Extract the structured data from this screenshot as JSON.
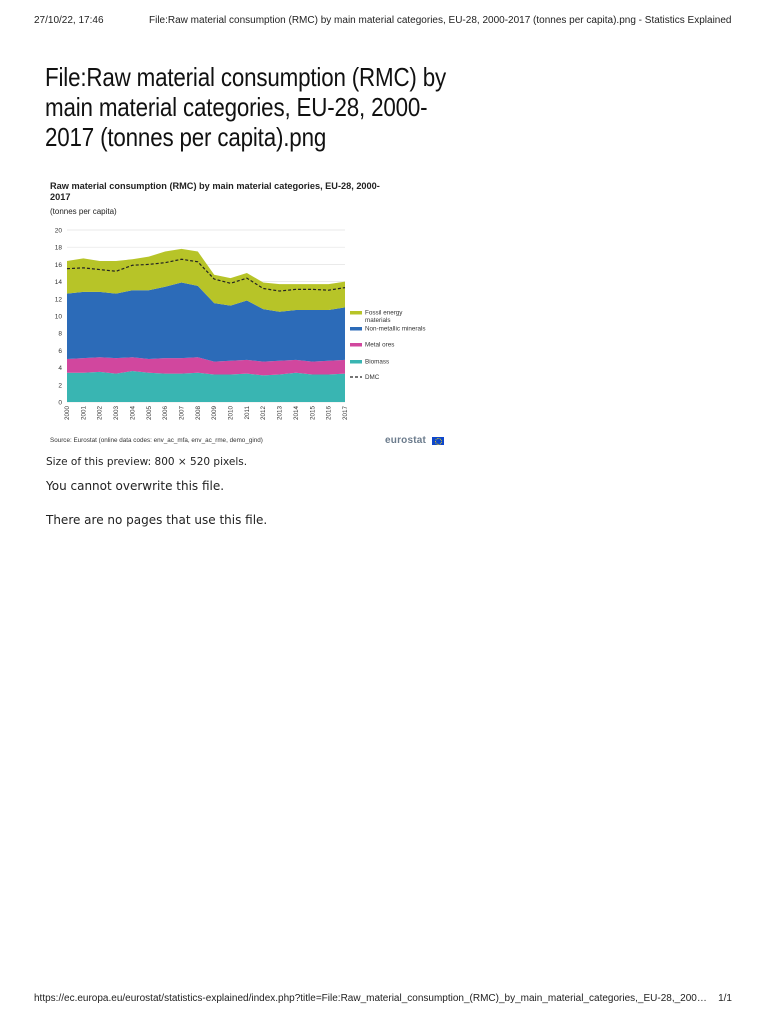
{
  "print_header": {
    "datetime": "27/10/22, 17:46",
    "page_title": "File:Raw material consumption (RMC) by main material categories, EU-28, 2000-2017 (tonnes per capita).png - Statistics Explained"
  },
  "page": {
    "title": "File:Raw material consumption (RMC) by main material categories, EU-28, 2000-2017 (tonnes per capita).png",
    "preview_size": "Size of this preview: 800 × 520 pixels.",
    "no_overwrite": "You cannot overwrite this file.",
    "no_pages": "There are no pages that use this file."
  },
  "figure": {
    "source": "Source: Eurostat (online data codes: env_ac_mfa, env_ac_rme, demo_gind)",
    "brand": "eurostat"
  },
  "print_footer": {
    "url": "https://ec.europa.eu/eurostat/statistics-explained/index.php?title=File:Raw_material_consumption_(RMC)_by_main_material_categories,_EU-28,_200…",
    "page_count": "1/1"
  },
  "chart_data": {
    "type": "area",
    "title": "Raw material consumption (RMC) by main material categories, EU-28, 2000-2017",
    "subtitle": "(tonnes per capita)",
    "x": [
      "2000",
      "2001",
      "2002",
      "2003",
      "2004",
      "2005",
      "2006",
      "2007",
      "2008",
      "2009",
      "2010",
      "2011",
      "2012",
      "2013",
      "2014",
      "2015",
      "2016",
      "2017"
    ],
    "ylim": [
      0,
      20
    ],
    "yticks": [
      0,
      2,
      4,
      6,
      8,
      10,
      12,
      14,
      16,
      18,
      20
    ],
    "grid": true,
    "legend_position": "right",
    "stacked": true,
    "series": [
      {
        "name": "Biomass",
        "color": "#39b5b2",
        "values": [
          3.4,
          3.4,
          3.5,
          3.3,
          3.6,
          3.4,
          3.3,
          3.3,
          3.4,
          3.2,
          3.2,
          3.3,
          3.1,
          3.2,
          3.4,
          3.2,
          3.2,
          3.3
        ]
      },
      {
        "name": "Metal ores",
        "color": "#d1479e",
        "values": [
          1.6,
          1.7,
          1.7,
          1.8,
          1.6,
          1.6,
          1.8,
          1.8,
          1.8,
          1.5,
          1.6,
          1.6,
          1.6,
          1.6,
          1.5,
          1.5,
          1.6,
          1.6
        ]
      },
      {
        "name": "Non-metallic minerals",
        "color": "#2c6bb8",
        "values": [
          7.6,
          7.7,
          7.6,
          7.5,
          7.8,
          8.0,
          8.3,
          8.8,
          8.3,
          6.8,
          6.4,
          6.9,
          6.1,
          5.7,
          5.8,
          6.0,
          5.9,
          6.1
        ]
      },
      {
        "name": "Fossil energy materials",
        "color": "#b7c428",
        "values": [
          3.8,
          3.9,
          3.6,
          3.8,
          3.6,
          3.9,
          4.1,
          3.9,
          4.0,
          3.3,
          3.2,
          3.2,
          3.1,
          3.2,
          3.0,
          3.0,
          3.0,
          3.0
        ]
      }
    ],
    "lines": [
      {
        "name": "DMC",
        "style": "dashed",
        "color": "#222222",
        "values": [
          15.5,
          15.6,
          15.4,
          15.2,
          15.9,
          16.0,
          16.2,
          16.6,
          16.3,
          14.3,
          13.8,
          14.4,
          13.2,
          12.9,
          13.1,
          13.1,
          13.0,
          13.3
        ]
      }
    ]
  }
}
